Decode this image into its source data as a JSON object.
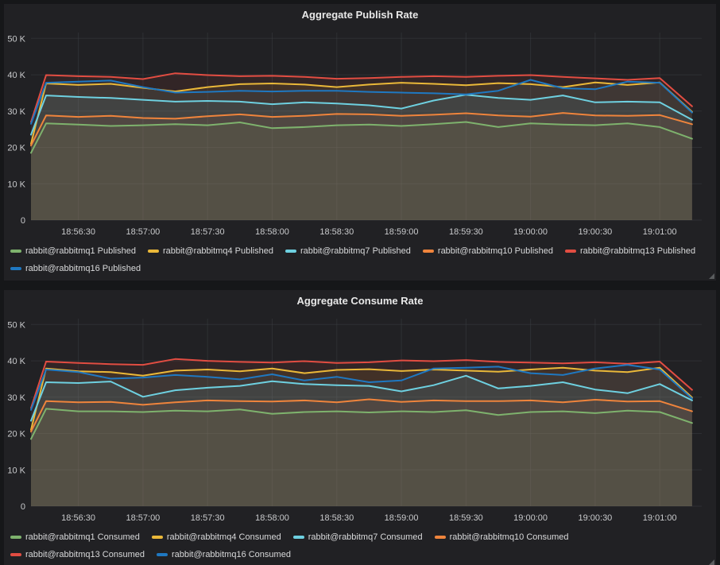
{
  "theme": {
    "page_bg": "#161719",
    "panel_bg": "#212124",
    "grid_color": "#3a3c40",
    "axis_text_color": "#c9cacc",
    "title_color": "#e8e8e8",
    "legend_text_color": "#d8d9da",
    "fill_opacity": 0.09,
    "palette": {
      "green": "#7EB26D",
      "yellow": "#EAB839",
      "cyan": "#6ED0E0",
      "orange": "#EF843C",
      "red": "#E24D42",
      "blue": "#1F78C1"
    }
  },
  "chart_data": [
    {
      "type": "area",
      "title": "Aggregate Publish Rate",
      "ylabel": "",
      "xlabel": "",
      "grid": true,
      "legend_position": "bottom",
      "ylim": [
        0,
        51.6
      ],
      "y_tick_values": [
        0,
        10,
        20,
        30,
        40,
        50
      ],
      "y_tick_labels": [
        "0",
        "10 K",
        "20 K",
        "30 K",
        "40 K",
        "50 K"
      ],
      "x_base_time": "18:56:00",
      "x_range_seconds": [
        8,
        318
      ],
      "x_tick_seconds": [
        30,
        60,
        90,
        120,
        150,
        180,
        210,
        240,
        270,
        300
      ],
      "x_tick_labels": [
        "18:56:30",
        "18:57:00",
        "18:57:30",
        "18:58:00",
        "18:58:30",
        "18:59:00",
        "18:59:30",
        "19:00:00",
        "19:00:30",
        "19:01:00"
      ],
      "x_offsets_seconds": [
        8,
        15,
        30,
        45,
        60,
        75,
        90,
        105,
        120,
        135,
        150,
        165,
        180,
        195,
        210,
        225,
        240,
        255,
        270,
        285,
        300,
        315
      ],
      "series": [
        {
          "name": "rabbit@rabbitmq1 Published",
          "color": "#7EB26D",
          "values": [
            18.5,
            26.6,
            26.3,
            25.9,
            26.1,
            26.4,
            26.1,
            26.9,
            25.3,
            25.6,
            26.1,
            26.3,
            25.9,
            26.4,
            27.0,
            25.6,
            26.6,
            26.3,
            26.1,
            26.6,
            25.6,
            22.4
          ]
        },
        {
          "name": "rabbit@rabbitmq4 Published",
          "color": "#EAB839",
          "values": [
            21.0,
            37.6,
            37.2,
            37.5,
            36.4,
            35.4,
            36.6,
            37.4,
            37.6,
            37.3,
            36.6,
            37.3,
            37.8,
            37.5,
            37.1,
            37.7,
            37.4,
            36.6,
            37.9,
            37.2,
            37.9,
            29.8
          ]
        },
        {
          "name": "rabbit@rabbitmq7 Published",
          "color": "#6ED0E0",
          "values": [
            23.5,
            34.3,
            33.9,
            33.6,
            33.1,
            32.6,
            32.8,
            32.6,
            31.9,
            32.4,
            32.1,
            31.6,
            30.7,
            32.9,
            34.5,
            33.6,
            33.1,
            34.3,
            32.4,
            32.6,
            32.4,
            27.6
          ]
        },
        {
          "name": "rabbit@rabbitmq10 Published",
          "color": "#EF843C",
          "values": [
            20.5,
            28.8,
            28.4,
            28.7,
            28.1,
            27.9,
            28.6,
            29.1,
            28.4,
            28.7,
            29.2,
            29.1,
            28.7,
            29.0,
            29.4,
            28.8,
            28.5,
            29.5,
            28.8,
            28.7,
            28.9,
            26.4
          ]
        },
        {
          "name": "rabbit@rabbitmq13 Published",
          "color": "#E24D42",
          "values": [
            27.0,
            39.9,
            39.6,
            39.4,
            38.8,
            40.4,
            39.9,
            39.6,
            39.7,
            39.4,
            38.9,
            39.1,
            39.4,
            39.6,
            39.4,
            39.7,
            39.9,
            39.4,
            39.0,
            38.6,
            39.1,
            31.3
          ]
        },
        {
          "name": "rabbit@rabbitmq16 Published",
          "color": "#1F78C1",
          "values": [
            26.5,
            37.8,
            38.1,
            38.4,
            36.6,
            35.1,
            35.3,
            35.6,
            35.4,
            35.6,
            35.6,
            35.3,
            35.1,
            34.9,
            34.6,
            35.6,
            38.6,
            36.3,
            36.0,
            38.1,
            37.8,
            29.6
          ]
        }
      ]
    },
    {
      "type": "area",
      "title": "Aggregate Consume Rate",
      "ylabel": "",
      "xlabel": "",
      "grid": true,
      "legend_position": "bottom",
      "ylim": [
        0,
        51.6
      ],
      "y_tick_values": [
        0,
        10,
        20,
        30,
        40,
        50
      ],
      "y_tick_labels": [
        "0",
        "10 K",
        "20 K",
        "30 K",
        "40 K",
        "50 K"
      ],
      "x_base_time": "18:56:00",
      "x_range_seconds": [
        8,
        318
      ],
      "x_tick_seconds": [
        30,
        60,
        90,
        120,
        150,
        180,
        210,
        240,
        270,
        300
      ],
      "x_tick_labels": [
        "18:56:30",
        "18:57:00",
        "18:57:30",
        "18:58:00",
        "18:58:30",
        "18:59:00",
        "18:59:30",
        "19:00:00",
        "19:00:30",
        "19:01:00"
      ],
      "x_offsets_seconds": [
        8,
        15,
        30,
        45,
        60,
        75,
        90,
        105,
        120,
        135,
        150,
        165,
        180,
        195,
        210,
        225,
        240,
        255,
        270,
        285,
        300,
        315
      ],
      "series": [
        {
          "name": "rabbit@rabbitmq1 Consumed",
          "color": "#7EB26D",
          "values": [
            18.5,
            26.8,
            26.1,
            26.1,
            25.9,
            26.3,
            26.1,
            26.6,
            25.4,
            25.9,
            26.1,
            25.8,
            26.1,
            25.9,
            26.4,
            25.1,
            25.9,
            26.1,
            25.6,
            26.3,
            25.9,
            22.9
          ]
        },
        {
          "name": "rabbit@rabbitmq4 Consumed",
          "color": "#EAB839",
          "values": [
            21.0,
            37.9,
            37.1,
            36.9,
            35.9,
            37.3,
            37.6,
            37.1,
            37.9,
            36.6,
            37.5,
            37.7,
            37.2,
            37.6,
            37.3,
            37.0,
            37.6,
            38.1,
            37.3,
            36.9,
            38.1,
            29.9
          ]
        },
        {
          "name": "rabbit@rabbitmq7 Consumed",
          "color": "#6ED0E0",
          "values": [
            23.5,
            34.1,
            33.9,
            34.3,
            30.1,
            31.9,
            32.6,
            33.1,
            34.4,
            33.6,
            33.3,
            33.1,
            31.6,
            33.3,
            35.9,
            32.4,
            33.1,
            34.1,
            32.1,
            31.1,
            33.6,
            29.1
          ]
        },
        {
          "name": "rabbit@rabbitmq10 Consumed",
          "color": "#EF843C",
          "values": [
            20.5,
            28.9,
            28.6,
            28.7,
            27.9,
            28.6,
            29.1,
            28.9,
            28.8,
            29.1,
            28.6,
            29.4,
            28.7,
            29.1,
            28.9,
            28.9,
            29.1,
            28.6,
            29.3,
            28.8,
            28.9,
            26.1
          ]
        },
        {
          "name": "rabbit@rabbitmq13 Consumed",
          "color": "#E24D42",
          "values": [
            27.0,
            39.8,
            39.4,
            39.1,
            38.9,
            40.5,
            40.0,
            39.7,
            39.5,
            39.9,
            39.4,
            39.6,
            40.1,
            39.9,
            40.2,
            39.7,
            39.5,
            39.3,
            39.6,
            39.2,
            39.8,
            32.0
          ]
        },
        {
          "name": "rabbit@rabbitmq16 Consumed",
          "color": "#1F78C1",
          "values": [
            26.5,
            37.6,
            36.9,
            35.1,
            35.4,
            36.1,
            35.6,
            34.9,
            36.3,
            34.6,
            35.6,
            34.1,
            34.6,
            37.9,
            38.1,
            38.4,
            36.6,
            36.1,
            37.9,
            38.9,
            37.6,
            29.6
          ]
        }
      ]
    }
  ]
}
